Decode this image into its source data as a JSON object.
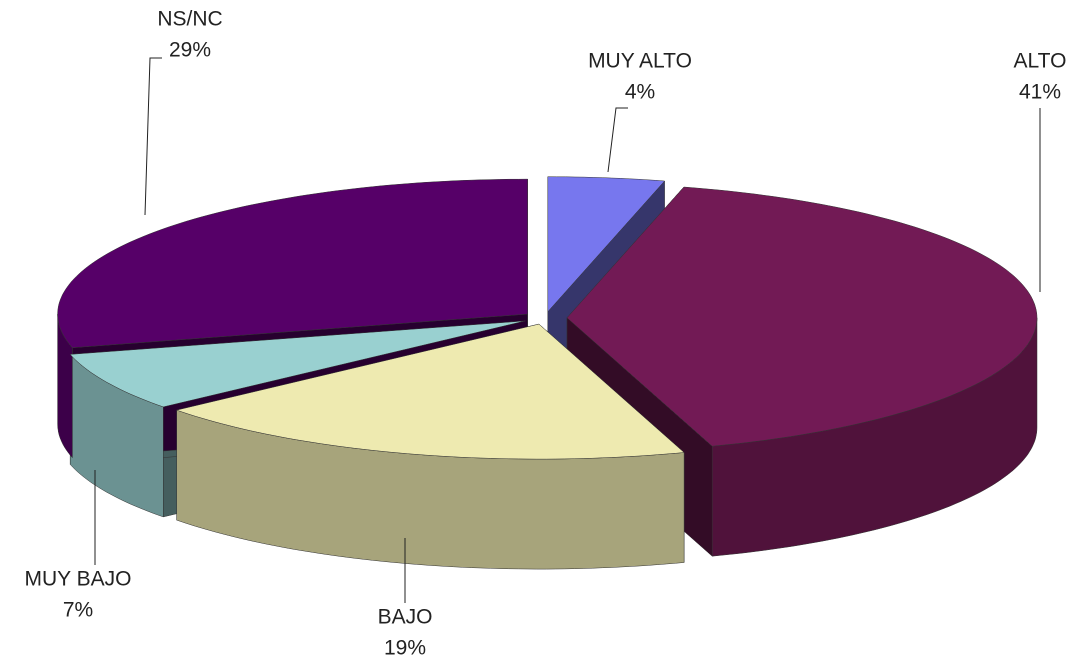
{
  "chart_data": {
    "type": "pie3d",
    "categories": [
      "MUY ALTO",
      "ALTO",
      "BAJO",
      "MUY BAJO",
      "NS/NC"
    ],
    "values": [
      4,
      41,
      19,
      7,
      29
    ],
    "value_labels": [
      "4%",
      "41%",
      "19%",
      "7%",
      "29%"
    ],
    "colors": [
      "#7777ee",
      "#721a55",
      "#eeeab0",
      "#99d0d0",
      "#560068"
    ]
  }
}
